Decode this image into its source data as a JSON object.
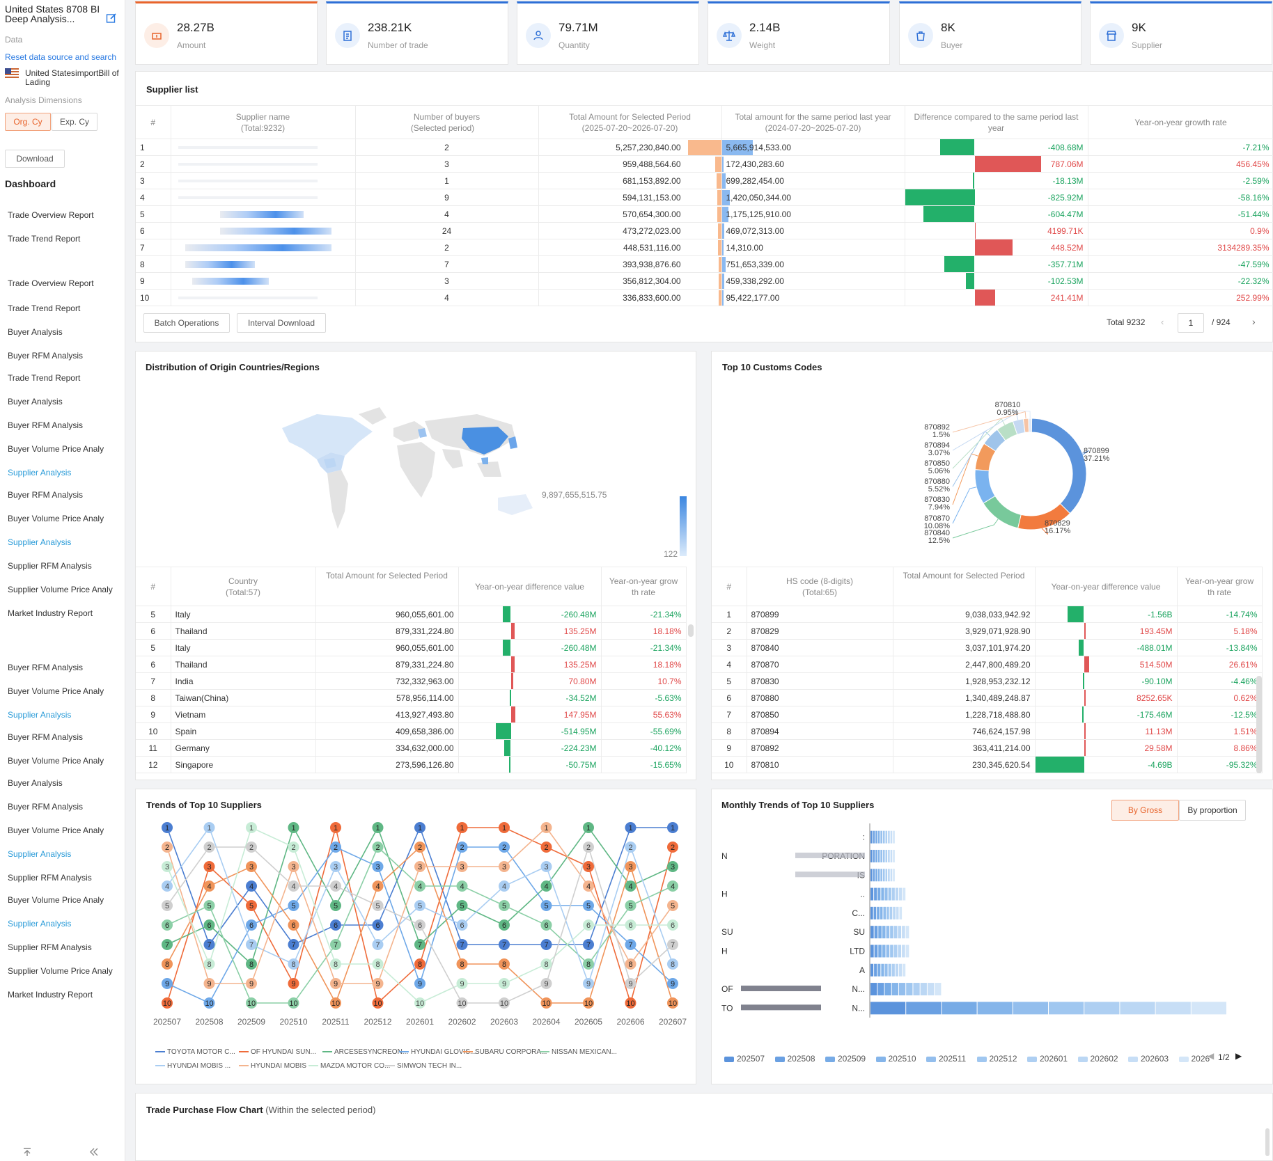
{
  "sidebar": {
    "title": "United States 8708 BI Deep Analysis...",
    "data_label": "Data",
    "reset_link": "Reset data source and search",
    "source": "United StatesimportBill of Lading",
    "dimensions_label": "Analysis Dimensions",
    "org_btn": "Org. Cy",
    "exp_btn": "Exp. Cy",
    "download_btn": "Download",
    "dashboard": "Dashboard",
    "nav": [
      {
        "label": "Trade Overview Report",
        "hl": false
      },
      {
        "label": "Trade Trend Report",
        "hl": false
      },
      {
        "label": "Trade Overview Report",
        "hl": false
      },
      {
        "label": "Trade Trend Report",
        "hl": false
      },
      {
        "label": "Buyer Analysis",
        "hl": false
      },
      {
        "label": "Buyer RFM Analysis",
        "hl": false
      },
      {
        "label": "Trade Trend Report",
        "hl": false
      },
      {
        "label": "Buyer Analysis",
        "hl": false
      },
      {
        "label": "Buyer RFM Analysis",
        "hl": false
      },
      {
        "label": "Buyer Volume Price Analy",
        "hl": false
      },
      {
        "label": "Supplier Analysis",
        "hl": true
      },
      {
        "label": "Buyer RFM Analysis",
        "hl": false
      },
      {
        "label": "Buyer Volume Price Analy",
        "hl": false
      },
      {
        "label": "Supplier Analysis",
        "hl": true
      },
      {
        "label": "Supplier RFM Analysis",
        "hl": false
      },
      {
        "label": "Supplier Volume Price Analy",
        "hl": false
      },
      {
        "label": "Market Industry Report",
        "hl": false
      },
      {
        "label": "Buyer RFM Analysis",
        "hl": false
      },
      {
        "label": "Buyer Volume Price Analy",
        "hl": false
      },
      {
        "label": "Supplier Analysis",
        "hl": true
      },
      {
        "label": "Buyer RFM Analysis",
        "hl": false
      },
      {
        "label": "Buyer Volume Price Analy",
        "hl": false
      },
      {
        "label": "Buyer Analysis",
        "hl": false
      },
      {
        "label": "Buyer RFM Analysis",
        "hl": false
      },
      {
        "label": "Buyer Volume Price Analy",
        "hl": false
      },
      {
        "label": "Supplier Analysis",
        "hl": true
      },
      {
        "label": "Supplier RFM Analysis",
        "hl": false
      },
      {
        "label": "Buyer Volume Price Analy",
        "hl": false
      },
      {
        "label": "Supplier Analysis",
        "hl": true
      },
      {
        "label": "Supplier RFM Analysis",
        "hl": false
      },
      {
        "label": "Supplier Volume Price Analy",
        "hl": false
      },
      {
        "label": "Market Industry Report",
        "hl": false
      }
    ]
  },
  "kpis": [
    {
      "value": "28.27B",
      "label": "Amount",
      "icon": "money-icon"
    },
    {
      "value": "238.21K",
      "label": "Number of trade",
      "icon": "clipboard-icon"
    },
    {
      "value": "79.71M",
      "label": "Quantity",
      "icon": "person-icon"
    },
    {
      "value": "2.14B",
      "label": "Weight",
      "icon": "scale-icon"
    },
    {
      "value": "8K",
      "label": "Buyer",
      "icon": "buyer-bag-icon"
    },
    {
      "value": "9K",
      "label": "Supplier",
      "icon": "store-icon"
    }
  ],
  "supplier_list": {
    "title": "Supplier list",
    "headers": [
      "#",
      "Supplier name (Total:9232)",
      "Number of buyers (Selected period)",
      "Total Amount for Selected Period (2025-07-20~2026-07-20)",
      "Total amount for the same period last year (2024-07-20~2025-07-20)",
      "Difference compared to the same period last year",
      "Year-on-year growth rate"
    ],
    "rows": [
      {
        "n": "1",
        "buyers": "2",
        "cur": "5,257,230,840.00",
        "curv": 5257230840,
        "last": "5,665,914,533.00",
        "lastv": 5665914533,
        "diff": "-408.68M",
        "diffv": -408.68,
        "rate": "-7.21%"
      },
      {
        "n": "2",
        "buyers": "3",
        "cur": "959,488,564.60",
        "curv": 959488564,
        "last": "172,430,283.60",
        "lastv": 172430283,
        "diff": "787.06M",
        "diffv": 787.06,
        "rate": "456.45%"
      },
      {
        "n": "3",
        "buyers": "1",
        "cur": "681,153,892.00",
        "curv": 681153892,
        "last": "699,282,454.00",
        "lastv": 699282454,
        "diff": "-18.13M",
        "diffv": -18.13,
        "rate": "-2.59%"
      },
      {
        "n": "4",
        "buyers": "9",
        "cur": "594,131,153.00",
        "curv": 594131153,
        "last": "1,420,050,344.00",
        "lastv": 1420050344,
        "diff": "-825.92M",
        "diffv": -825.92,
        "rate": "-58.16%"
      },
      {
        "n": "5",
        "buyers": "4",
        "cur": "570,654,300.00",
        "curv": 570654300,
        "last": "1,175,125,910.00",
        "lastv": 1175125910,
        "diff": "-604.47M",
        "diffv": -604.47,
        "rate": "-51.44%"
      },
      {
        "n": "6",
        "buyers": "24",
        "cur": "473,272,023.00",
        "curv": 473272023,
        "last": "469,072,313.00",
        "lastv": 469072313,
        "diff": "4199.71K",
        "diffv": 4.2,
        "rate": "0.9%"
      },
      {
        "n": "7",
        "buyers": "2",
        "cur": "448,531,116.00",
        "curv": 448531116,
        "last": "14,310.00",
        "lastv": 14310,
        "diff": "448.52M",
        "diffv": 448.52,
        "rate": "3134289.35%"
      },
      {
        "n": "8",
        "buyers": "7",
        "cur": "393,938,876.60",
        "curv": 393938876,
        "last": "751,653,339.00",
        "lastv": 751653339,
        "diff": "-357.71M",
        "diffv": -357.71,
        "rate": "-47.59%"
      },
      {
        "n": "9",
        "buyers": "3",
        "cur": "356,812,304.00",
        "curv": 356812304,
        "last": "459,338,292.00",
        "lastv": 459338292,
        "diff": "-102.53M",
        "diffv": -102.53,
        "rate": "-22.32%"
      },
      {
        "n": "10",
        "buyers": "4",
        "cur": "336,833,600.00",
        "curv": 336833600,
        "last": "95,422,177.00",
        "lastv": 95422177,
        "diff": "241.41M",
        "diffv": 241.41,
        "rate": "252.99%"
      }
    ],
    "batch_btn": "Batch Operations",
    "interval_btn": "Interval Download",
    "total": "Total 9232",
    "page": "1",
    "pages": "/ 924"
  },
  "origin": {
    "title": "Distribution of Origin Countries/Regions",
    "scale_max": "9,897,655,515.75",
    "scale_min": "122",
    "headers": [
      "#",
      "Country (Total:57)",
      "Total Amount for Selected Period",
      "Year-on-year difference value",
      "Year-on-year growth rate"
    ],
    "rows": [
      {
        "n": "5",
        "c": "Italy",
        "amt": "960,055,601.00",
        "diff": "-260.48M",
        "dv": -260.48,
        "rate": "-21.34%"
      },
      {
        "n": "6",
        "c": "Thailand",
        "amt": "879,331,224.80",
        "diff": "135.25M",
        "dv": 135.25,
        "rate": "18.18%"
      },
      {
        "n": "5",
        "c": "Italy",
        "amt": "960,055,601.00",
        "diff": "-260.48M",
        "dv": -260.48,
        "rate": "-21.34%"
      },
      {
        "n": "6",
        "c": "Thailand",
        "amt": "879,331,224.80",
        "diff": "135.25M",
        "dv": 135.25,
        "rate": "18.18%"
      },
      {
        "n": "7",
        "c": "India",
        "amt": "732,332,963.00",
        "diff": "70.80M",
        "dv": 70.8,
        "rate": "10.7%"
      },
      {
        "n": "8",
        "c": "Taiwan(China)",
        "amt": "578,956,114.00",
        "diff": "-34.52M",
        "dv": -34.52,
        "rate": "-5.63%"
      },
      {
        "n": "9",
        "c": "Vietnam",
        "amt": "413,927,493.80",
        "diff": "147.95M",
        "dv": 147.95,
        "rate": "55.63%"
      },
      {
        "n": "10",
        "c": "Spain",
        "amt": "409,658,386.00",
        "diff": "-514.95M",
        "dv": -514.95,
        "rate": "-55.69%"
      },
      {
        "n": "11",
        "c": "Germany",
        "amt": "334,632,000.00",
        "diff": "-224.23M",
        "dv": -224.23,
        "rate": "-40.12%"
      },
      {
        "n": "12",
        "c": "Singapore",
        "amt": "273,596,126.80",
        "diff": "-50.75M",
        "dv": -50.75,
        "rate": "-15.65%"
      }
    ]
  },
  "customs": {
    "title": "Top 10 Customs Codes",
    "headers": [
      "#",
      "HS code (8-digits) (Total:65)",
      "Total Amount for Selected Period",
      "Year-on-year difference value",
      "Year-on-year growth rate"
    ],
    "rows": [
      {
        "n": "1",
        "c": "870899",
        "amt": "9,038,033,942.92",
        "diff": "-1.56B",
        "dv": -1560,
        "rate": "-14.74%"
      },
      {
        "n": "2",
        "c": "870829",
        "amt": "3,929,071,928.90",
        "diff": "193.45M",
        "dv": 193.45,
        "rate": "5.18%"
      },
      {
        "n": "3",
        "c": "870840",
        "amt": "3,037,101,974.20",
        "diff": "-488.01M",
        "dv": -488.01,
        "rate": "-13.84%"
      },
      {
        "n": "4",
        "c": "870870",
        "amt": "2,447,800,489.20",
        "diff": "514.50M",
        "dv": 514.5,
        "rate": "26.61%"
      },
      {
        "n": "5",
        "c": "870830",
        "amt": "1,928,953,232.12",
        "diff": "-90.10M",
        "dv": -90.1,
        "rate": "-4.46%"
      },
      {
        "n": "6",
        "c": "870880",
        "amt": "1,340,489,248.87",
        "diff": "8252.65K",
        "dv": 8.25,
        "rate": "0.62%"
      },
      {
        "n": "7",
        "c": "870850",
        "amt": "1,228,718,488.80",
        "diff": "-175.46M",
        "dv": -175.46,
        "rate": "-12.5%"
      },
      {
        "n": "8",
        "c": "870894",
        "amt": "746,624,157.98",
        "diff": "11.13M",
        "dv": 11.13,
        "rate": "1.51%"
      },
      {
        "n": "9",
        "c": "870892",
        "amt": "363,411,214.00",
        "diff": "29.58M",
        "dv": 29.58,
        "rate": "8.86%"
      },
      {
        "n": "10",
        "c": "870810",
        "amt": "230,345,620.54",
        "diff": "-4.69B",
        "dv": -4690,
        "rate": "-95.32%"
      }
    ]
  },
  "trends": {
    "title": "Trends of Top 10 Suppliers",
    "legend": [
      "TOYOTA MOTOR C...",
      "OF HYUNDAI SUN...",
      "ARCESESYNCREON...",
      "HYUNDAI GLOVIS...",
      "SUBARU CORPORA...",
      "NISSAN MEXICAN...",
      "HYUNDAI MOBIS ...",
      "HYUNDAI MOBIS",
      "MAZDA MOTOR CO...",
      "SIMWON TECH IN..."
    ]
  },
  "monthly": {
    "title": "Monthly Trends of Top 10 Suppliers",
    "tab_gross": "By Gross",
    "tab_prop": "By proportion",
    "labels": [
      ":",
      "PORATION",
      "IS",
      "..",
      "C...",
      "SU",
      "LTD",
      "A",
      "N...",
      "N..."
    ],
    "labels_left": [
      "",
      "N",
      "",
      "H",
      "",
      "SU",
      "H",
      "",
      "OF",
      "TO"
    ],
    "legend": [
      "202507",
      "202508",
      "202509",
      "202510",
      "202511",
      "202512",
      "202601",
      "202602",
      "202603",
      "2026"
    ],
    "page": "1/2"
  },
  "flow": {
    "title": "Trade Purchase Flow Chart",
    "subtitle": "(Within the selected period)"
  },
  "chart_data": [
    {
      "type": "pie",
      "title": "Top 10 Customs Codes",
      "labels": [
        "870899",
        "870829",
        "870840",
        "870870",
        "870830",
        "870880",
        "870850",
        "870894",
        "870892",
        "870810"
      ],
      "values": [
        37.21,
        16.17,
        12.5,
        10.08,
        7.94,
        5.52,
        5.06,
        3.07,
        1.5,
        0.95
      ],
      "colors": [
        "#5b93dc",
        "#f27b3e",
        "#78c99b",
        "#7ab3ef",
        "#f29a5c",
        "#9fc4ea",
        "#b9dfc6",
        "#c5d9f2",
        "#f6c4a6",
        "#dfeaf8"
      ]
    },
    {
      "type": "line",
      "title": "Trends of Top 10 Suppliers",
      "categories": [
        "202507",
        "202508",
        "202509",
        "202510",
        "202511",
        "202512",
        "202601",
        "202602",
        "202603",
        "202604",
        "202605",
        "202606",
        "202607"
      ],
      "ylim": [
        1,
        10
      ],
      "series": [
        {
          "name": "TOYOTA MOTOR C...",
          "color": "#4b7ed1",
          "values": [
            1,
            7,
            4,
            7,
            6,
            6,
            1,
            7,
            7,
            7,
            7,
            1,
            1
          ]
        },
        {
          "name": "OF HYUNDAI SUN...",
          "color": "#ef6b3a",
          "values": [
            10,
            3,
            5,
            9,
            1,
            10,
            8,
            1,
            1,
            2,
            3,
            10,
            2
          ]
        },
        {
          "name": "ARCESESYNCREON...",
          "color": "#5fb784",
          "values": [
            7,
            6,
            8,
            1,
            5,
            1,
            7,
            5,
            6,
            4,
            1,
            4,
            3
          ]
        },
        {
          "name": "HYUNDAI GLOVIS...",
          "color": "#6ea8e8",
          "values": [
            9,
            10,
            6,
            5,
            2,
            3,
            9,
            2,
            2,
            5,
            5,
            7,
            9
          ]
        },
        {
          "name": "SUBARU CORPORA...",
          "color": "#f0945a",
          "values": [
            8,
            4,
            3,
            6,
            10,
            4,
            2,
            8,
            8,
            10,
            10,
            3,
            10
          ]
        },
        {
          "name": "NISSAN MEXICAN...",
          "color": "#8bcfa6",
          "values": [
            6,
            5,
            10,
            10,
            7,
            2,
            4,
            4,
            5,
            6,
            8,
            5,
            4
          ]
        },
        {
          "name": "HYUNDAI MOBIS ...",
          "color": "#a9cdf2",
          "values": [
            4,
            1,
            7,
            8,
            3,
            7,
            5,
            6,
            4,
            3,
            9,
            2,
            8
          ]
        },
        {
          "name": "HYUNDAI MOBIS",
          "color": "#f4b48e",
          "values": [
            2,
            9,
            9,
            3,
            9,
            9,
            3,
            3,
            3,
            1,
            4,
            8,
            5
          ]
        },
        {
          "name": "MAZDA MOTOR CO...",
          "color": "#c7ecd6",
          "values": [
            3,
            8,
            1,
            2,
            8,
            8,
            10,
            9,
            9,
            8,
            6,
            6,
            6
          ]
        },
        {
          "name": "SIMWON TECH IN...",
          "color": "#cfcfcf",
          "values": [
            5,
            2,
            2,
            4,
            4,
            5,
            6,
            10,
            10,
            9,
            2,
            9,
            7
          ]
        }
      ]
    },
    {
      "type": "bar",
      "title": "Monthly Trends of Top 10 Suppliers",
      "orientation": "horizontal-stacked",
      "series_count": 10,
      "totals_relative": [
        0.07,
        0.07,
        0.07,
        0.1,
        0.09,
        0.11,
        0.11,
        0.1,
        0.2,
        1.0
      ]
    }
  ]
}
